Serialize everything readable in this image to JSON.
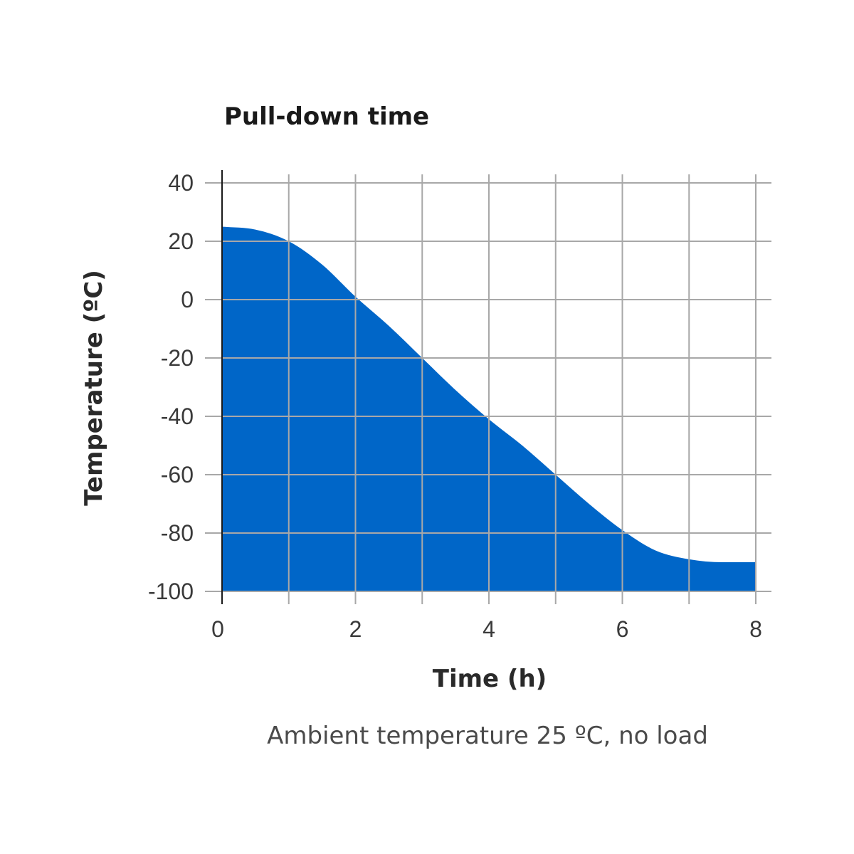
{
  "chart_data": {
    "type": "area",
    "title": "Pull-down time",
    "xlabel": "Time (h)",
    "ylabel": "Temperature (ºC)",
    "note": "Ambient temperature 25 ºC, no load",
    "xlim": [
      0,
      8
    ],
    "ylim": [
      -100,
      40
    ],
    "xticks": [
      "0",
      "2",
      "4",
      "6",
      "8"
    ],
    "yticks": [
      "40",
      "20",
      "0",
      "-20",
      "-40",
      "-60",
      "-80",
      "-100"
    ],
    "grid": true,
    "fill_color": "#0066c8",
    "series": [
      {
        "x": [
          0,
          0.5,
          1,
          1.5,
          2,
          2.5,
          3,
          3.5,
          4,
          4.5,
          5,
          5.5,
          6,
          6.5,
          7,
          7.5,
          8
        ],
        "values": [
          25,
          24,
          20,
          12,
          1,
          -9,
          -20,
          -31,
          -41,
          -50,
          -60,
          -70,
          -79,
          -86,
          -89,
          -90,
          -90
        ]
      }
    ]
  }
}
